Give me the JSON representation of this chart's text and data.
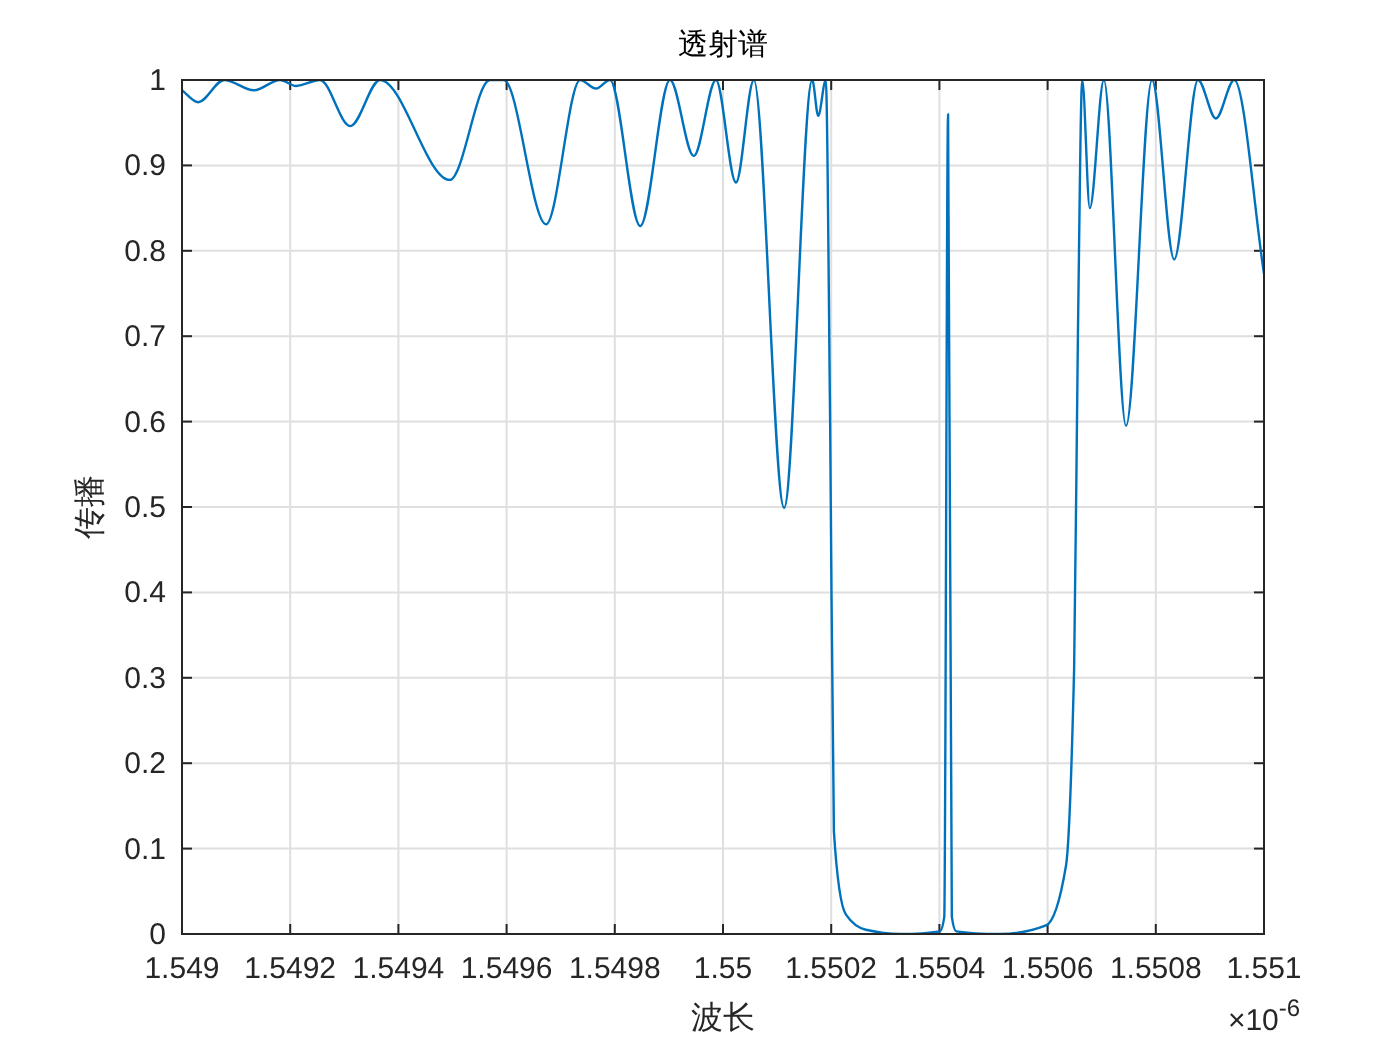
{
  "chart_data": {
    "type": "line",
    "title": "透射谱",
    "xlabel": "波长",
    "ylabel": "传播",
    "annotations": [
      "×10$^{-6}$"
    ],
    "x": [
      1.549,
      1.54903,
      1.549078,
      1.549133,
      1.549181,
      1.549211,
      1.549255,
      1.549311,
      1.549366,
      1.549495,
      1.549569,
      1.549595,
      1.549673,
      1.549736,
      1.549765,
      1.549791,
      1.549847,
      1.549902,
      1.549946,
      1.549987,
      1.550024,
      1.550057,
      1.550113,
      1.550165,
      1.550176,
      1.55019,
      1.550198,
      1.550205,
      1.550227,
      1.550264,
      1.550327,
      1.550401,
      1.550409,
      1.550416,
      1.550423,
      1.550431,
      1.550512,
      1.550597,
      1.550634,
      1.550649,
      1.550656,
      1.550664,
      1.550678,
      1.550704,
      1.550745,
      1.550793,
      1.550834,
      1.550878,
      1.550911,
      1.550945,
      1.551
    ],
    "series": [
      {
        "color": "#0072bd",
        "values": [
          0.988,
          0.974,
          1,
          0.988,
          1,
          0.993,
          1,
          0.946,
          1,
          0.883,
          1,
          1,
          0.831,
          1,
          0.99,
          1,
          0.829,
          1,
          0.911,
          1,
          0.88,
          1,
          0.499,
          1,
          0.958,
          1,
          0.6,
          0.12,
          0.023,
          0.005,
          0,
          0.003,
          0.02,
          0.96,
          0.02,
          0.003,
          0,
          0.01,
          0.08,
          0.31,
          0.7,
          1,
          0.85,
          1,
          0.595,
          1,
          0.79,
          1,
          0.955,
          1,
          0.773
        ]
      }
    ],
    "xlim": [
      1.549,
      1.551
    ],
    "ylim": [
      0,
      1
    ],
    "xticks": [
      1.549,
      1.5492,
      1.5494,
      1.5496,
      1.5498,
      1.55,
      1.5502,
      1.5504,
      1.5506,
      1.5508,
      1.551
    ],
    "yticks": [
      0,
      0.1,
      0.2,
      0.3,
      0.4,
      0.5,
      0.6,
      0.7,
      0.8,
      0.9,
      1
    ],
    "grid": true
  }
}
